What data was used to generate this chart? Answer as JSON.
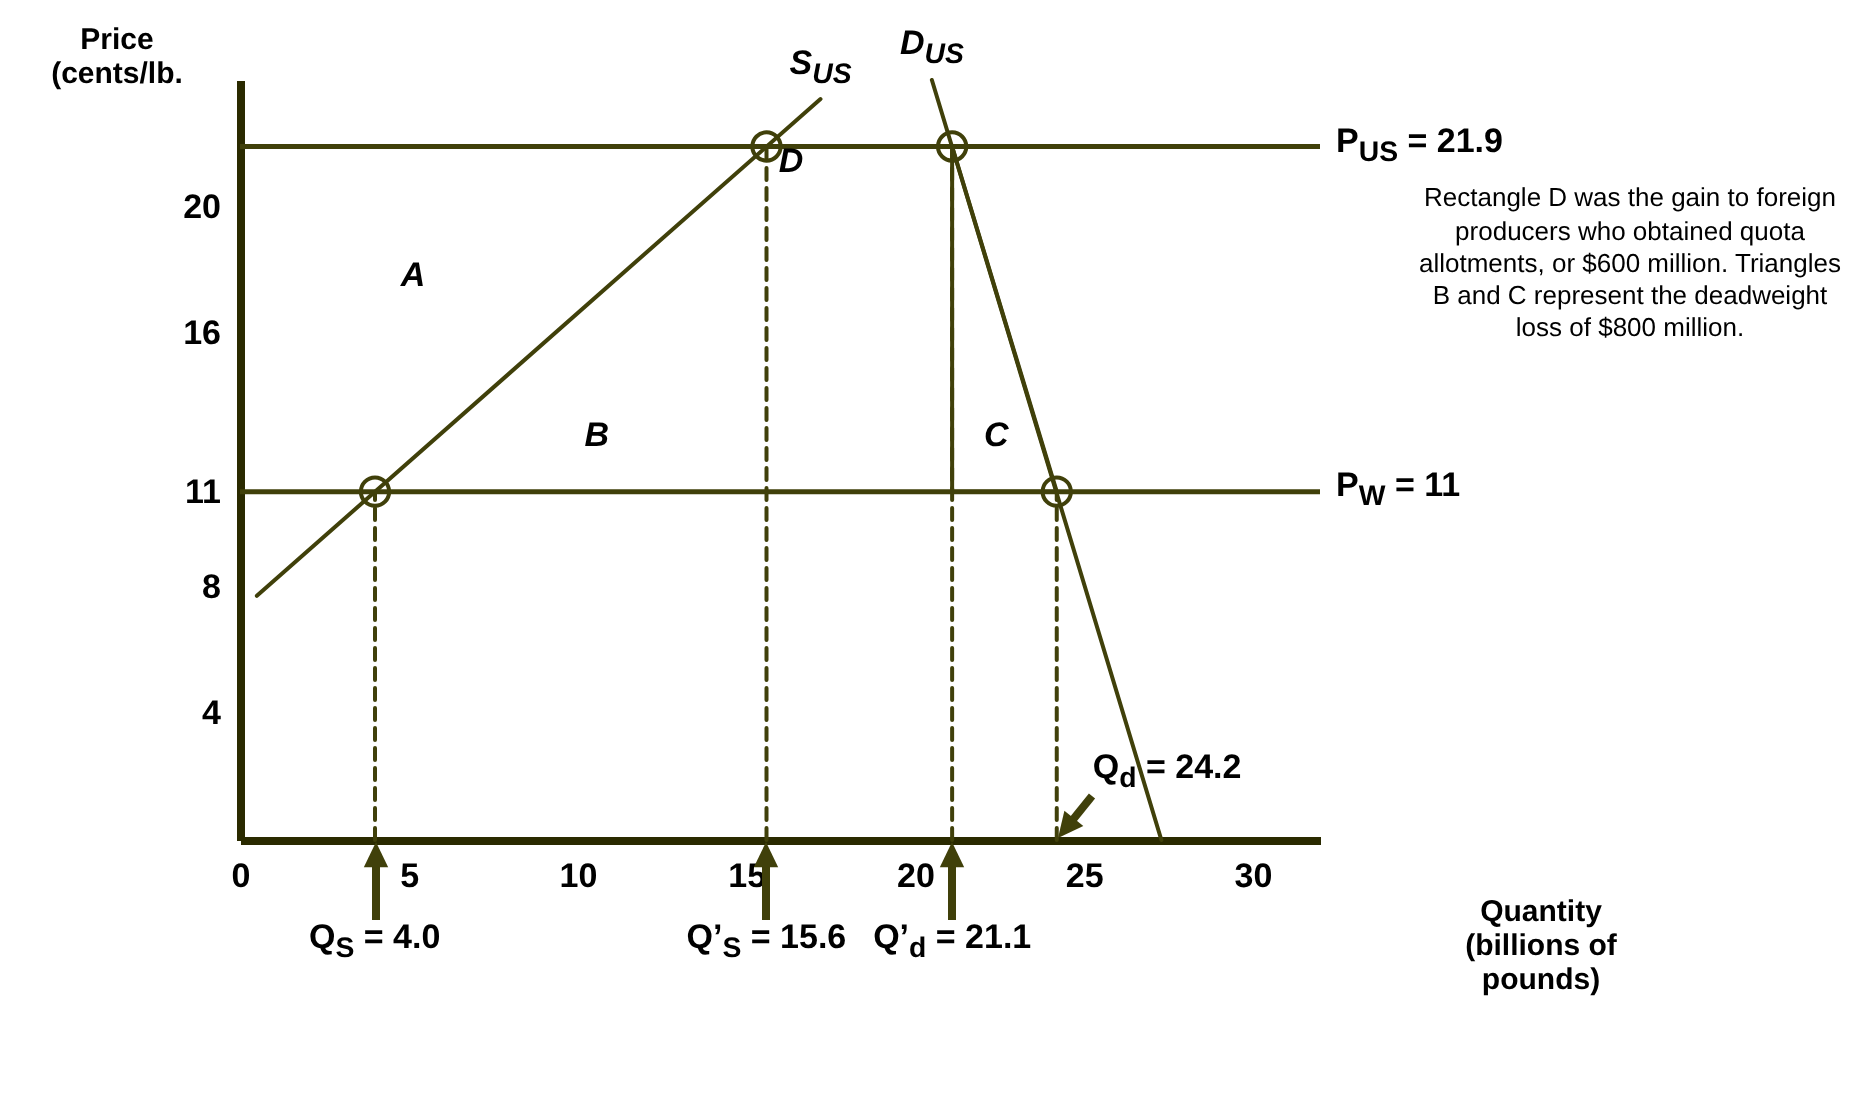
{
  "chart_data": {
    "type": "line",
    "xlabel": "Quantity\n(billions of\npounds)",
    "ylabel": "Price\n(cents/lb.",
    "xlim": [
      0,
      32
    ],
    "ylim": [
      0,
      24
    ],
    "xticks": [
      0,
      5,
      10,
      15,
      20,
      25,
      30
    ],
    "yticks": [
      4,
      8,
      11,
      16,
      20
    ],
    "grid": false,
    "line_style": "solid",
    "series": [
      {
        "name": "S$_{US}$",
        "color": "#40400a",
        "x": [
          0.5,
          17.2
        ],
        "values": [
          7.71,
          23.4
        ]
      },
      {
        "name": "D$_{US}$",
        "color": "#40400a",
        "x": [
          20.5,
          27.3
        ],
        "values": [
          24,
          0
        ]
      },
      {
        "color": "#40400a",
        "x": [
          21.1,
          24.2
        ],
        "values": [
          21.9,
          11
        ]
      },
      {
        "color": "#40400a",
        "x": [
          21.1,
          21.1,
          24.2
        ],
        "values": [
          21.9,
          11,
          11
        ]
      },
      {
        "color": "#40400a",
        "line_style": "dashed",
        "x": [
          4,
          4
        ],
        "values": [
          0,
          11
        ]
      },
      {
        "color": "#40400a",
        "line_style": "dashed",
        "x": [
          15.6,
          15.6
        ],
        "values": [
          0,
          21.9
        ]
      },
      {
        "color": "#40400a",
        "line_style": "dashed",
        "x": [
          21.1,
          21.1
        ],
        "values": [
          0,
          21.9
        ]
      },
      {
        "color": "#40400a",
        "line_style": "dashed",
        "x": [
          24.2,
          24.2
        ],
        "values": [
          0,
          11
        ]
      },
      {
        "type": "scatter",
        "marker": "circle",
        "color": "#40400a",
        "x": [
          4,
          15.6,
          21.1,
          24.2
        ],
        "values": [
          11,
          21.9,
          21.9,
          11
        ]
      }
    ],
    "ref_lines": [
      {
        "axis": "y",
        "value": 21.9,
        "label": "P$_{US}$ = 21.9",
        "color": "#40400a"
      },
      {
        "axis": "y",
        "value": 11,
        "label": "P$_{W}$ = 11",
        "color": "#40400a"
      }
    ],
    "annotations": [
      "A",
      "B",
      "C",
      "D",
      {
        "text": "Q$_{S}$ = 4.0",
        "x": 4,
        "y": 0
      },
      {
        "text": "Q’$_{S}$ = 15.6",
        "x": 15.6,
        "y": 0
      },
      {
        "text": "Q’$_{d}$ = 21.1",
        "x": 21.1,
        "y": 0
      },
      {
        "text": "Q$_{d}$ = 24.2",
        "x": 24.2,
        "y": 0
      },
      "Rectangle D was the gain to foreign producers who obtained quota allotments, or $600 million. Triangles B and C represent the deadweight loss of $800 million."
    ]
  }
}
